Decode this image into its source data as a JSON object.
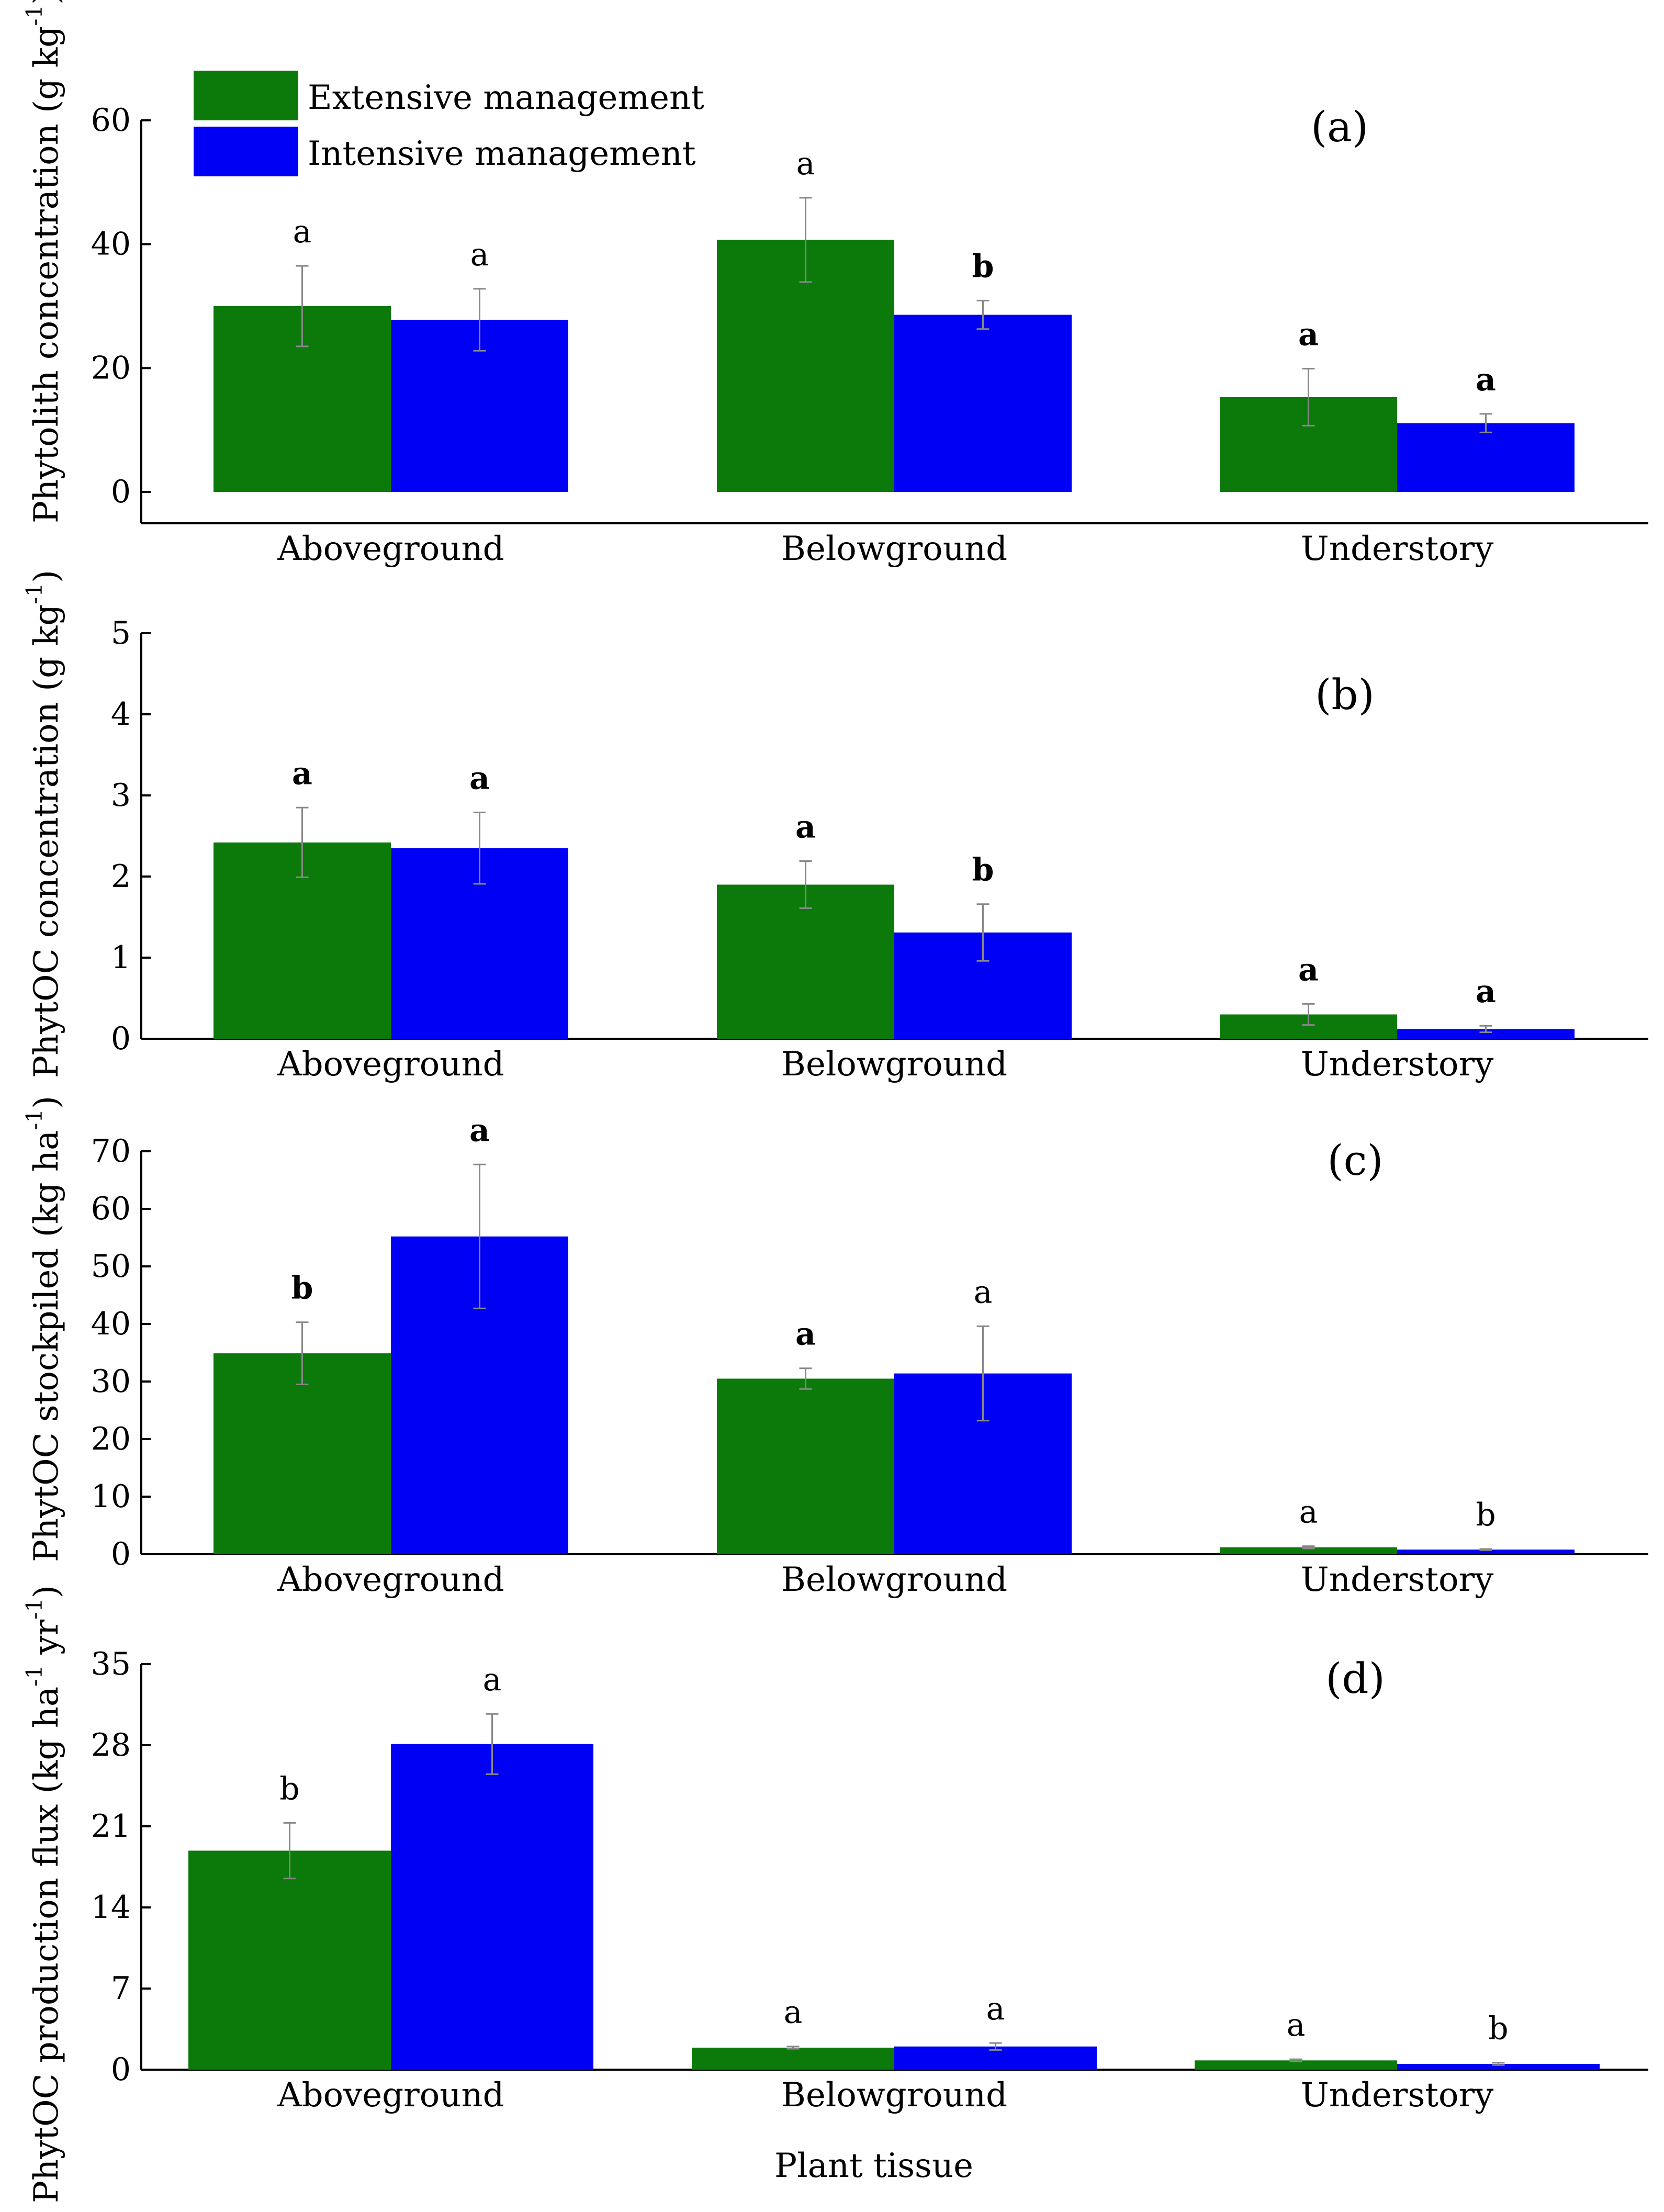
{
  "legend": {
    "entries": [
      {
        "label": "Extensive management",
        "color": "#0b7a0b"
      },
      {
        "label": "Intensive management",
        "color": "#0000f5"
      }
    ],
    "placement": "top-left"
  },
  "x_axis_title": "Plant tissue",
  "chart_data": [
    {
      "type": "bar",
      "tag": "(a)",
      "ylabel_main": "Phytolith concentration (g kg",
      "ylabel_sup": "-1",
      "ylabel_end": ")",
      "categories": [
        "Aboveground",
        "Belowground",
        "Understory"
      ],
      "ylim": [
        0,
        60
      ],
      "yticks": [
        0,
        20,
        40,
        60
      ],
      "grid": false,
      "series": [
        {
          "name": "Extensive management",
          "values": [
            30.0,
            40.7,
            15.3
          ],
          "errors": [
            6.5,
            6.8,
            4.6
          ]
        },
        {
          "name": "Intensive management",
          "values": [
            27.8,
            28.6,
            11.1
          ],
          "errors": [
            5.0,
            2.3,
            1.5
          ]
        }
      ],
      "letters": [
        [
          "a",
          "a"
        ],
        [
          "a",
          "b"
        ],
        [
          "a",
          "a"
        ]
      ],
      "letters_bold": [
        [
          false,
          false
        ],
        [
          false,
          true
        ],
        [
          true,
          true
        ]
      ]
    },
    {
      "type": "bar",
      "tag": "(b)",
      "ylabel_main": "PhytOC concentration (g kg",
      "ylabel_sup": "-1",
      "ylabel_end": ")",
      "categories": [
        "Aboveground",
        "Belowground",
        "Understory"
      ],
      "ylim": [
        0,
        5
      ],
      "yticks": [
        0,
        1,
        2,
        3,
        4,
        5
      ],
      "grid": false,
      "series": [
        {
          "name": "Extensive management",
          "values": [
            2.42,
            1.9,
            0.3
          ],
          "errors": [
            0.43,
            0.29,
            0.13
          ]
        },
        {
          "name": "Intensive management",
          "values": [
            2.35,
            1.31,
            0.12
          ],
          "errors": [
            0.44,
            0.35,
            0.04
          ]
        }
      ],
      "letters": [
        [
          "a",
          "a"
        ],
        [
          "a",
          "b"
        ],
        [
          "a",
          "a"
        ]
      ],
      "letters_bold": [
        [
          true,
          true
        ],
        [
          true,
          true
        ],
        [
          true,
          true
        ]
      ]
    },
    {
      "type": "bar",
      "tag": "(c)",
      "ylabel_main": "PhytOC stockpiled (kg ha",
      "ylabel_sup": "-1",
      "ylabel_end": ")",
      "categories": [
        "Aboveground",
        "Belowground",
        "Understory"
      ],
      "ylim": [
        0,
        70
      ],
      "yticks": [
        0,
        10,
        20,
        30,
        40,
        50,
        60,
        70
      ],
      "grid": false,
      "series": [
        {
          "name": "Extensive management",
          "values": [
            34.9,
            30.5,
            1.2
          ],
          "errors": [
            5.4,
            1.8,
            0.2
          ]
        },
        {
          "name": "Intensive management",
          "values": [
            55.2,
            31.4,
            0.8
          ],
          "errors": [
            12.5,
            8.2,
            0.1
          ]
        }
      ],
      "letters": [
        [
          "b",
          "a"
        ],
        [
          "a",
          "a"
        ],
        [
          "a",
          "b"
        ]
      ],
      "letters_bold": [
        [
          true,
          true
        ],
        [
          true,
          false
        ],
        [
          false,
          false
        ]
      ]
    },
    {
      "type": "bar",
      "tag": "(d)",
      "ylabel_main": "PhytOC production flux (kg ha",
      "ylabel_sup": "-1",
      "ylabel_mid": " yr",
      "ylabel_sup2": "-1",
      "ylabel_end": ")",
      "categories": [
        "Aboveground",
        "Belowground",
        "Understory"
      ],
      "ylim": [
        0,
        35
      ],
      "yticks": [
        0,
        7,
        14,
        21,
        28,
        35
      ],
      "grid": false,
      "series": [
        {
          "name": "Extensive management",
          "values": [
            18.9,
            1.9,
            0.8
          ],
          "errors": [
            2.4,
            0.1,
            0.1
          ]
        },
        {
          "name": "Intensive management",
          "values": [
            28.1,
            2.0,
            0.5
          ],
          "errors": [
            2.6,
            0.3,
            0.1
          ]
        }
      ],
      "letters": [
        [
          "b",
          "a"
        ],
        [
          "a",
          "a"
        ],
        [
          "a",
          "b"
        ]
      ],
      "letters_bold": [
        [
          false,
          false
        ],
        [
          false,
          false
        ],
        [
          false,
          false
        ]
      ]
    }
  ]
}
